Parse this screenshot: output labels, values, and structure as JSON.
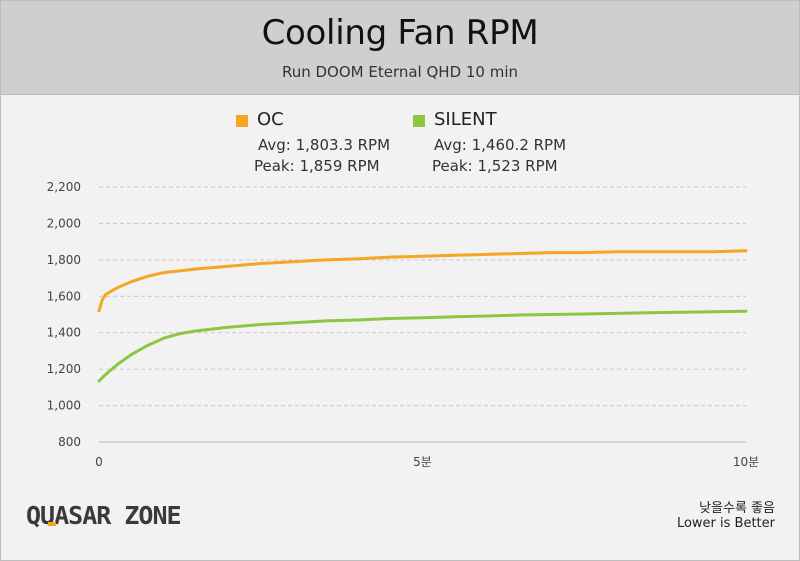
{
  "header": {
    "title": "Cooling Fan RPM",
    "subtitle": "Run DOOM Eternal QHD 10 min"
  },
  "legend": {
    "oc": {
      "name": "OC",
      "avg": "Avg: 1,803.3 RPM",
      "peak": "Peak: 1,859 RPM"
    },
    "silent": {
      "name": "SILENT",
      "avg": "Avg: 1,460.2 RPM",
      "peak": "Peak: 1,523 RPM"
    }
  },
  "footer": {
    "logo": "QUASAR ZONE",
    "note_ko": "낮을수록 좋음",
    "note_en": "Lower is Better"
  },
  "colors": {
    "oc": "#f5a623",
    "silent": "#8dc63f",
    "grid": "#c8c8c8",
    "logo_accent": "#f5a623",
    "logo_text": "#3a3a3a"
  },
  "chart_data": {
    "type": "line",
    "title": "Cooling Fan RPM",
    "subtitle": "Run DOOM Eternal QHD 10 min",
    "xlabel": "",
    "ylabel": "",
    "x_unit": "minutes",
    "xlim": [
      0,
      10
    ],
    "ylim": [
      800,
      2200
    ],
    "x_ticks": [
      {
        "value": 0,
        "label": "0"
      },
      {
        "value": 5,
        "label": "5분"
      },
      {
        "value": 10,
        "label": "10분"
      }
    ],
    "y_ticks": [
      {
        "value": 800,
        "label": "800"
      },
      {
        "value": 1000,
        "label": "1,000"
      },
      {
        "value": 1200,
        "label": "1,200"
      },
      {
        "value": 1400,
        "label": "1,400"
      },
      {
        "value": 1600,
        "label": "1,600"
      },
      {
        "value": 1800,
        "label": "1,800"
      },
      {
        "value": 2000,
        "label": "2,000"
      },
      {
        "value": 2200,
        "label": "2,200"
      }
    ],
    "grid": true,
    "legend_position": "top-center",
    "series": [
      {
        "name": "OC",
        "color": "#f5a623",
        "x": [
          0,
          0.05,
          0.1,
          0.2,
          0.3,
          0.5,
          0.75,
          1,
          1.5,
          2,
          2.5,
          3,
          3.5,
          4,
          4.5,
          5,
          5.5,
          6,
          6.5,
          7,
          7.5,
          8,
          8.5,
          9,
          9.5,
          10
        ],
        "y": [
          1520,
          1580,
          1610,
          1630,
          1650,
          1680,
          1710,
          1730,
          1750,
          1765,
          1780,
          1790,
          1800,
          1805,
          1815,
          1820,
          1825,
          1830,
          1835,
          1840,
          1840,
          1845,
          1845,
          1845,
          1845,
          1850
        ]
      },
      {
        "name": "SILENT",
        "color": "#8dc63f",
        "x": [
          0,
          0.1,
          0.2,
          0.3,
          0.5,
          0.75,
          1,
          1.25,
          1.5,
          2,
          2.5,
          3,
          3.5,
          4,
          4.5,
          5,
          5.5,
          6,
          6.5,
          7,
          7.5,
          8,
          8.5,
          9,
          9.5,
          10
        ],
        "y": [
          1135,
          1170,
          1200,
          1230,
          1280,
          1330,
          1370,
          1395,
          1410,
          1430,
          1445,
          1455,
          1465,
          1470,
          1478,
          1482,
          1488,
          1492,
          1497,
          1500,
          1503,
          1506,
          1510,
          1512,
          1515,
          1518
        ]
      }
    ]
  }
}
